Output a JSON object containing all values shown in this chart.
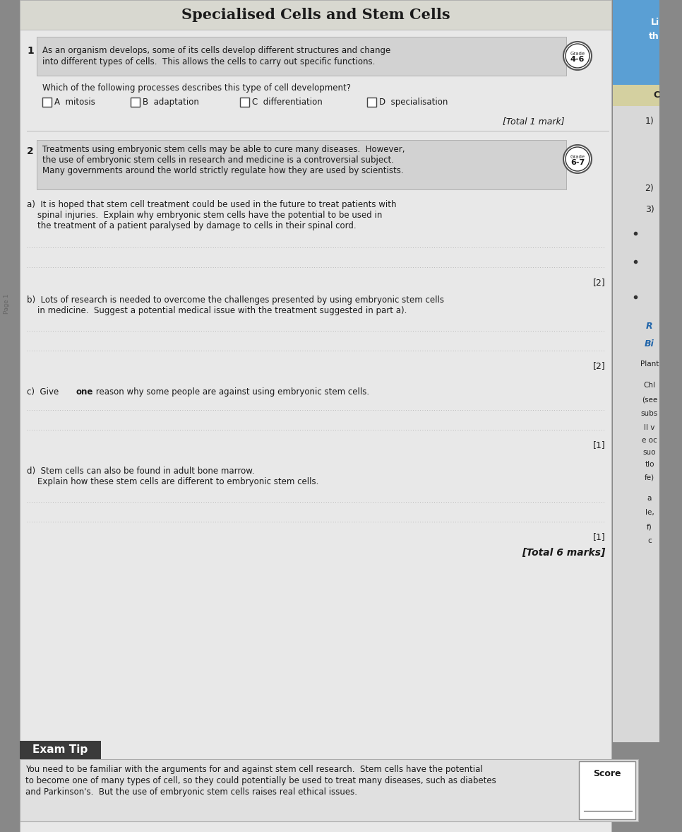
{
  "title": "Specialised Cells and Stem Cells",
  "q1_text_line1": "As an organism develops, some of its cells develop different structures and change",
  "q1_text_line2": "into different types of cells.  This allows the cells to carry out specific functions.",
  "q1_grade": "4-6",
  "q1_sub": "Which of the following processes describes this type of cell development?",
  "q1_options": [
    "A  mitosis",
    "B  adaptation",
    "C  differentiation",
    "D  specialisation"
  ],
  "q1_total": "[Total 1 mark]",
  "q2_text_line1": "Treatments using embryonic stem cells may be able to cure many diseases.  However,",
  "q2_text_line2": "the use of embryonic stem cells in research and medicine is a controversial subject.",
  "q2_text_line3": "Many governments around the world strictly regulate how they are used by scientists.",
  "q2_grade": "6-7",
  "qa_line1": "a)  It is hoped that stem cell treatment could be used in the future to treat patients with",
  "qa_line2": "    spinal injuries.  Explain why embryonic stem cells have the potential to be used in",
  "qa_line3": "    the treatment of a patient paralysed by damage to cells in their spinal cord.",
  "qa_marks": "[2]",
  "qb_line1": "b)  Lots of research is needed to overcome the challenges presented by using embryonic stem cells",
  "qb_line2": "    in medicine.  Suggest a potential medical issue with the treatment suggested in part a).",
  "qb_marks": "[2]",
  "qc_text": "c)  Give ​one reason why some people are against using embryonic stem cells.",
  "qc_marks": "[1]",
  "qd_line1": "d)  Stem cells can also be found in adult bone marrow.",
  "qd_line2": "    Explain how these stem cells are different to embryonic stem cells.",
  "qd_marks": "[1]",
  "total_marks": "[Total 6 marks]",
  "exam_tip_title": "Exam Tip",
  "exam_tip_line1": "You need to be familiar with the arguments for and against stem cell research.  Stem cells have the potential",
  "exam_tip_line2": "to become one of many types of cell, so they could potentially be used to treat many diseases, such as diabetes",
  "exam_tip_line3": "and Parkinson's.  But the use of embryonic stem cells raises real ethical issues.",
  "score_label": "Score",
  "main_bg": "#dcdcdc",
  "page_bg": "#e8e8e8",
  "shaded_box": "#d2d2d2",
  "border_color": "#999999",
  "text_color": "#1a1a1a",
  "right_col_bg": "#5a9fd4",
  "right_col2_bg": "#c8c8c0",
  "exam_tip_dark": "#3a3a3a",
  "dotted_line": "#aaaaaa"
}
